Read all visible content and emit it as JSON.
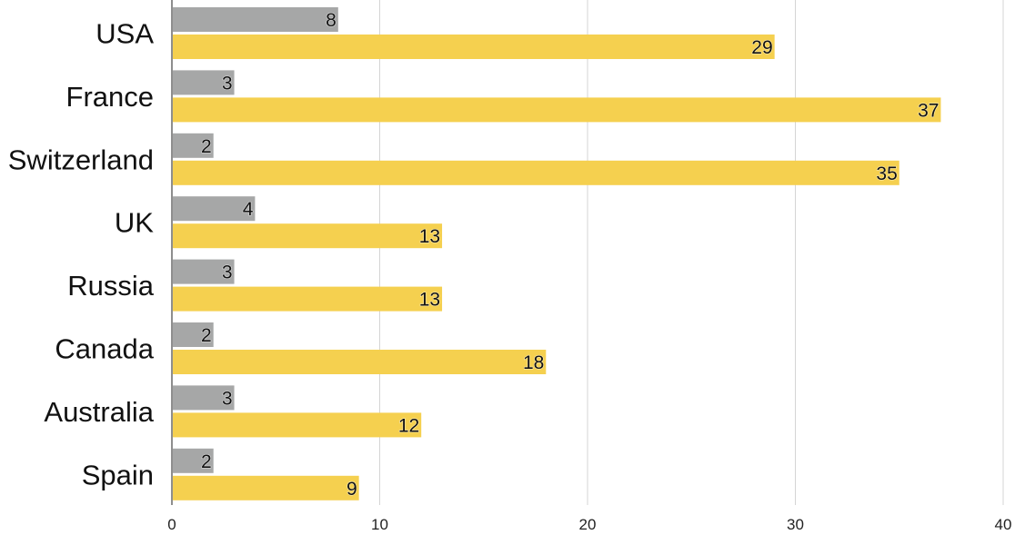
{
  "chart_data": {
    "type": "bar",
    "orientation": "horizontal",
    "categories": [
      "USA",
      "France",
      "Switzerland",
      "UK",
      "Russia",
      "Canada",
      "Australia",
      "Spain"
    ],
    "series": [
      {
        "values": [
          8,
          3,
          2,
          4,
          3,
          2,
          3,
          2
        ],
        "color": "#a6a7a7"
      },
      {
        "values": [
          29,
          37,
          35,
          13,
          13,
          18,
          12,
          9
        ],
        "color": "#f5d04f"
      }
    ],
    "xlim": [
      0,
      40
    ],
    "xticks": [
      0,
      10,
      20,
      30,
      40
    ],
    "grid": true,
    "data_labels": true,
    "title": "",
    "xlabel": "",
    "ylabel": ""
  }
}
